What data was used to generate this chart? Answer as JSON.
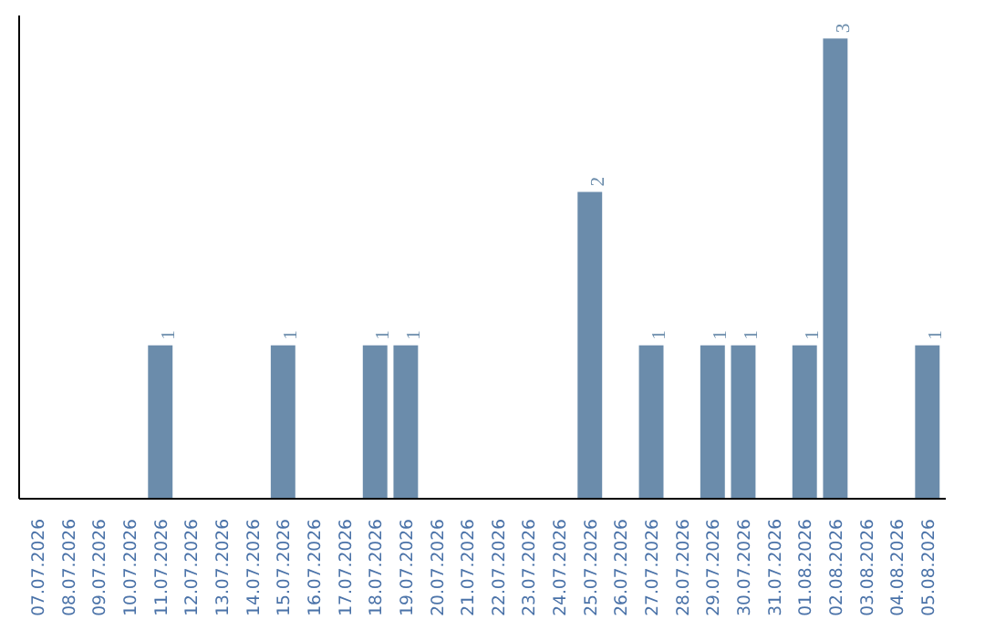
{
  "chart_data": {
    "type": "bar",
    "categories": [
      "07.07.2026",
      "08.07.2026",
      "09.07.2026",
      "10.07.2026",
      "11.07.2026",
      "12.07.2026",
      "13.07.2026",
      "14.07.2026",
      "15.07.2026",
      "16.07.2026",
      "17.07.2026",
      "18.07.2026",
      "19.07.2026",
      "20.07.2026",
      "21.07.2026",
      "22.07.2026",
      "23.07.2026",
      "24.07.2026",
      "25.07.2026",
      "26.07.2026",
      "27.07.2026",
      "28.07.2026",
      "29.07.2026",
      "30.07.2026",
      "31.07.2026",
      "01.08.2026",
      "02.08.2026",
      "03.08.2026",
      "04.08.2026",
      "05.08.2026"
    ],
    "values": [
      0,
      0,
      0,
      0,
      1,
      0,
      0,
      0,
      1,
      0,
      0,
      1,
      1,
      0,
      0,
      0,
      0,
      0,
      2,
      0,
      1,
      0,
      1,
      1,
      0,
      1,
      3,
      0,
      0,
      1
    ],
    "value_labels": [
      null,
      null,
      null,
      null,
      "1",
      null,
      null,
      null,
      "1",
      null,
      null,
      "1",
      "1",
      null,
      null,
      null,
      null,
      null,
      "2",
      null,
      "1",
      null,
      "1",
      "1",
      null,
      "1",
      "3",
      null,
      null,
      "1"
    ],
    "color": "#6b8cab",
    "tick_labels": "x",
    "grid": false
  }
}
